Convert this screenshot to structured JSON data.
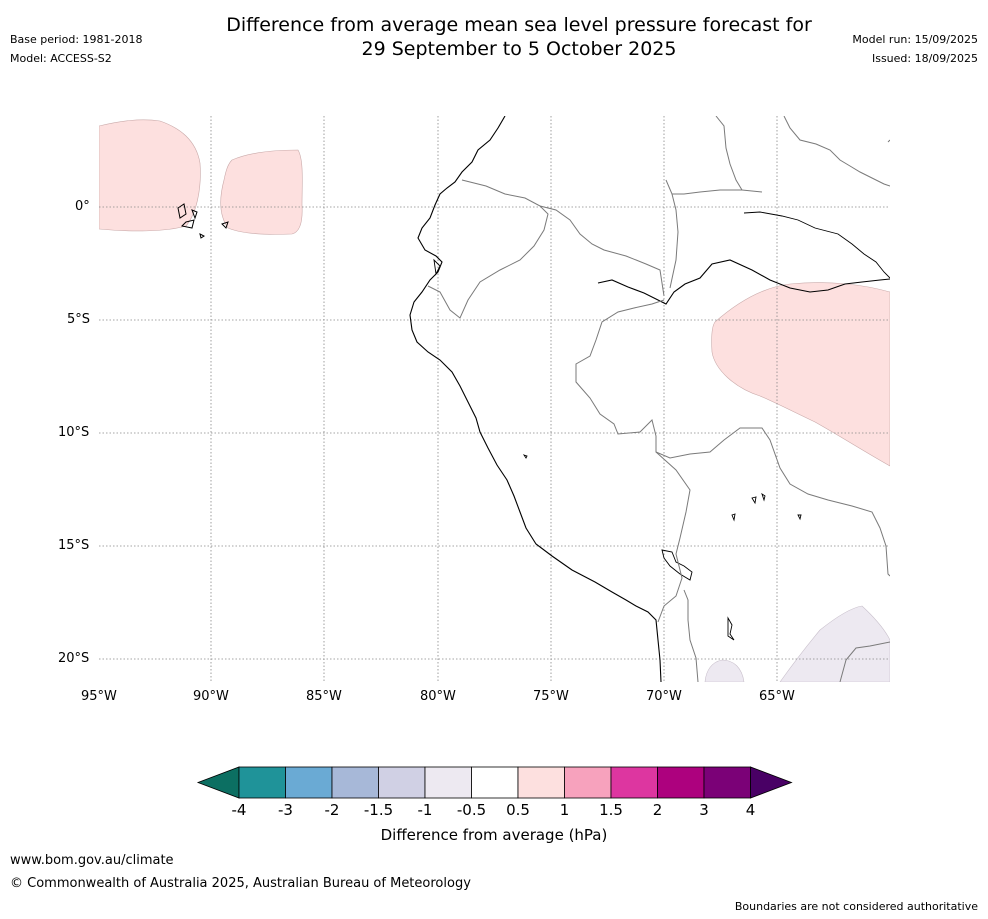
{
  "header": {
    "title_line1": "Difference from average mean sea level pressure forecast for",
    "title_line2": "29 September to 5 October 2025",
    "base_period": "Base period: 1981-2018",
    "model": "Model: ACCESS-S2",
    "model_run": "Model run: 15/09/2025",
    "issued": "Issued: 18/09/2025"
  },
  "map": {
    "lat_labels": [
      "0°",
      "5°S",
      "10°S",
      "15°S",
      "20°S"
    ],
    "lon_labels": [
      "95°W",
      "90°W",
      "85°W",
      "80°W",
      "75°W",
      "70°W",
      "65°W"
    ],
    "anomaly_regions": [
      {
        "name": "central Pacific west",
        "category": "0.5 to 1"
      },
      {
        "name": "central Pacific east",
        "category": "0.5 to 1"
      },
      {
        "name": "western Amazon",
        "category": "0.5 to 1"
      },
      {
        "name": "southern Bolivia",
        "category": "-1 to -0.5"
      }
    ]
  },
  "colorbar": {
    "ticks": [
      "-4",
      "-3",
      "-2",
      "-1.5",
      "-1",
      "-0.5",
      "0.5",
      "1",
      "1.5",
      "2",
      "3",
      "4"
    ],
    "colors": [
      "#0c6f62",
      "#1f9399",
      "#6aaad4",
      "#a7b8d8",
      "#d0d0e4",
      "#ede9f1",
      "#ffffff",
      "#fde0df",
      "#f7a2bd",
      "#dd36a0",
      "#ad017e",
      "#7b0177",
      "#490065"
    ],
    "label": "Difference from average (hPa)"
  },
  "footer": {
    "website": "www.bom.gov.au/climate",
    "copyright": "© Commonwealth of Australia 2025, Australian Bureau of Meteorology",
    "disclaimer": "Boundaries are not considered authoritative"
  }
}
